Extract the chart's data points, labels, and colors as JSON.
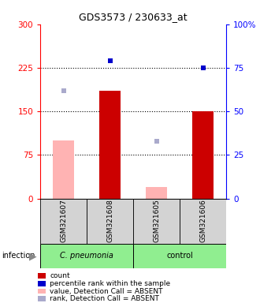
{
  "title": "GDS3573 / 230633_at",
  "samples": [
    "GSM321607",
    "GSM321608",
    "GSM321605",
    "GSM321606"
  ],
  "bar_absent_vals": [
    100,
    null,
    20,
    null
  ],
  "bar_present_vals": [
    null,
    185,
    null,
    150
  ],
  "absent_rank_pct": [
    62,
    null,
    33,
    null
  ],
  "present_rank_pct": [
    null,
    79,
    null,
    75
  ],
  "ylim_left": [
    0,
    300
  ],
  "ylim_right": [
    0,
    100
  ],
  "yticks_left": [
    0,
    75,
    150,
    225,
    300
  ],
  "ytick_labels_left": [
    "0",
    "75",
    "150",
    "225",
    "300"
  ],
  "ytick_labels_right": [
    "0",
    "25",
    "50",
    "75",
    "100%"
  ],
  "hlines": [
    75,
    150,
    225
  ],
  "color_red": "#cc0000",
  "color_pink": "#ffb3b3",
  "color_blue_dark": "#0000cc",
  "color_blue_light": "#aaaacc",
  "color_gray": "#d3d3d3",
  "color_green": "#90ee90",
  "legend_items": [
    {
      "label": "count",
      "color": "#cc0000"
    },
    {
      "label": "percentile rank within the sample",
      "color": "#0000cc"
    },
    {
      "label": "value, Detection Call = ABSENT",
      "color": "#ffb3b3"
    },
    {
      "label": "rank, Detection Call = ABSENT",
      "color": "#aaaacc"
    }
  ]
}
